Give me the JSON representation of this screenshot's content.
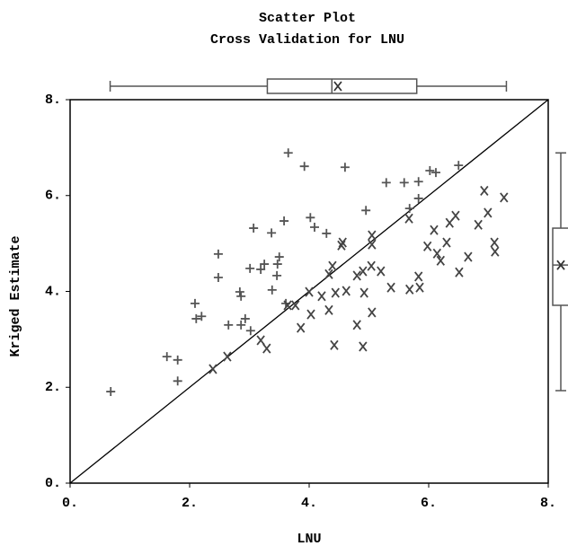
{
  "chart_data": {
    "type": "scatter",
    "title": "Scatter Plot",
    "subtitle": "Cross Validation for LNU",
    "x_label": "LNU",
    "y_label": "Kriged Estimate",
    "xlim": [
      0,
      8
    ],
    "ylim": [
      0,
      8
    ],
    "xticks": [
      {
        "value": 0,
        "label": "0."
      },
      {
        "value": 2,
        "label": "2."
      },
      {
        "value": 4,
        "label": "4."
      },
      {
        "value": 6,
        "label": "6."
      },
      {
        "value": 8,
        "label": "8."
      }
    ],
    "yticks": [
      {
        "value": 0,
        "label": "0."
      },
      {
        "value": 2,
        "label": "2."
      },
      {
        "value": 4,
        "label": "4."
      },
      {
        "value": 6,
        "label": "6."
      },
      {
        "value": 8,
        "label": "8."
      }
    ],
    "diagonal": true,
    "series": [
      {
        "marker": "plus",
        "color": "#555555",
        "x": [
          0.68,
          1.62,
          1.8,
          1.8,
          2.09,
          2.11,
          2.2,
          2.48,
          2.48,
          2.65,
          2.86,
          2.84,
          2.86,
          2.93,
          3.02,
          3.01,
          3.07,
          3.19,
          3.25,
          3.37,
          3.38,
          3.46,
          3.47,
          3.5,
          3.58,
          3.61,
          3.65,
          3.92,
          4.02,
          4.09,
          4.29,
          4.6,
          4.95,
          5.29,
          5.59,
          5.83,
          5.83,
          6.02,
          5.68,
          6.12,
          6.5
        ],
        "values": [
          1.91,
          2.64,
          2.57,
          2.13,
          3.75,
          3.43,
          3.48,
          4.78,
          4.29,
          3.3,
          3.3,
          3.99,
          3.9,
          3.43,
          3.18,
          4.48,
          5.32,
          4.46,
          4.57,
          5.22,
          4.03,
          4.33,
          4.57,
          4.72,
          5.47,
          3.75,
          6.89,
          6.61,
          5.54,
          5.34,
          5.21,
          6.59,
          5.69,
          6.27,
          6.27,
          6.29,
          5.94,
          6.52,
          5.73,
          6.48,
          6.63
        ]
      },
      {
        "marker": "cross",
        "color": "#444444",
        "x": [
          2.39,
          2.63,
          3.19,
          3.29,
          3.64,
          3.77,
          3.86,
          4.0,
          4.03,
          4.21,
          4.33,
          4.33,
          4.39,
          4.42,
          4.44,
          4.54,
          4.56,
          4.62,
          4.8,
          4.8,
          4.9,
          4.9,
          4.92,
          5.04,
          5.05,
          5.05,
          5.05,
          5.2,
          5.37,
          5.67,
          5.68,
          5.83,
          5.85,
          5.98,
          6.09,
          6.14,
          6.2,
          6.3,
          6.35,
          6.45,
          6.51,
          6.66,
          6.83,
          6.93,
          6.99,
          7.1,
          7.11,
          7.26
        ],
        "values": [
          2.38,
          2.64,
          2.98,
          2.81,
          3.71,
          3.71,
          3.24,
          3.99,
          3.52,
          3.9,
          3.61,
          4.36,
          4.53,
          2.88,
          3.97,
          4.96,
          5.02,
          4.01,
          3.3,
          4.33,
          4.42,
          2.85,
          3.97,
          4.53,
          4.98,
          5.17,
          3.56,
          4.42,
          4.08,
          5.52,
          4.04,
          4.31,
          4.08,
          4.94,
          5.28,
          4.79,
          4.64,
          5.02,
          5.43,
          5.58,
          4.4,
          4.72,
          5.39,
          6.1,
          5.64,
          5.02,
          4.83,
          5.96
        ]
      }
    ],
    "x_box": {
      "min": 0.67,
      "q1": 3.3,
      "median": 4.38,
      "q3": 5.8,
      "max": 7.3,
      "mean": 4.48
    },
    "y_box": {
      "min": 1.93,
      "q1": 3.71,
      "median": 4.55,
      "q3": 5.32,
      "max": 6.89,
      "mean": 4.55
    }
  }
}
